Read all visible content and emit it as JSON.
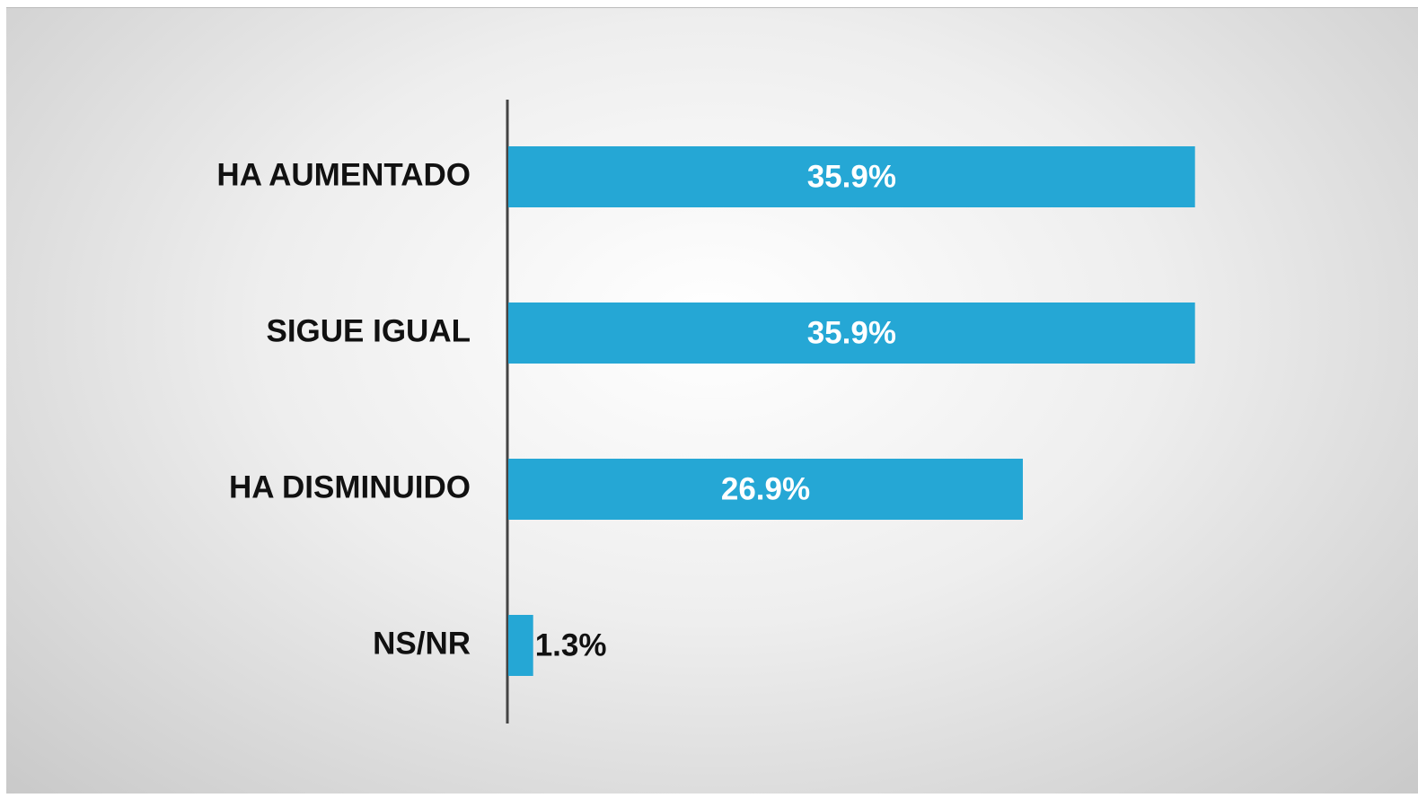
{
  "chart_data": {
    "type": "bar",
    "orientation": "horizontal",
    "categories": [
      "HA AUMENTADO",
      "SIGUE IGUAL",
      "HA DISMINUIDO",
      "NS/NR"
    ],
    "values": [
      35.9,
      35.9,
      26.9,
      1.3
    ],
    "value_labels": [
      "35.9%",
      "35.9%",
      "26.9%",
      "1.3%"
    ],
    "color": "#25a7d5",
    "xlim": [
      0,
      40
    ]
  }
}
